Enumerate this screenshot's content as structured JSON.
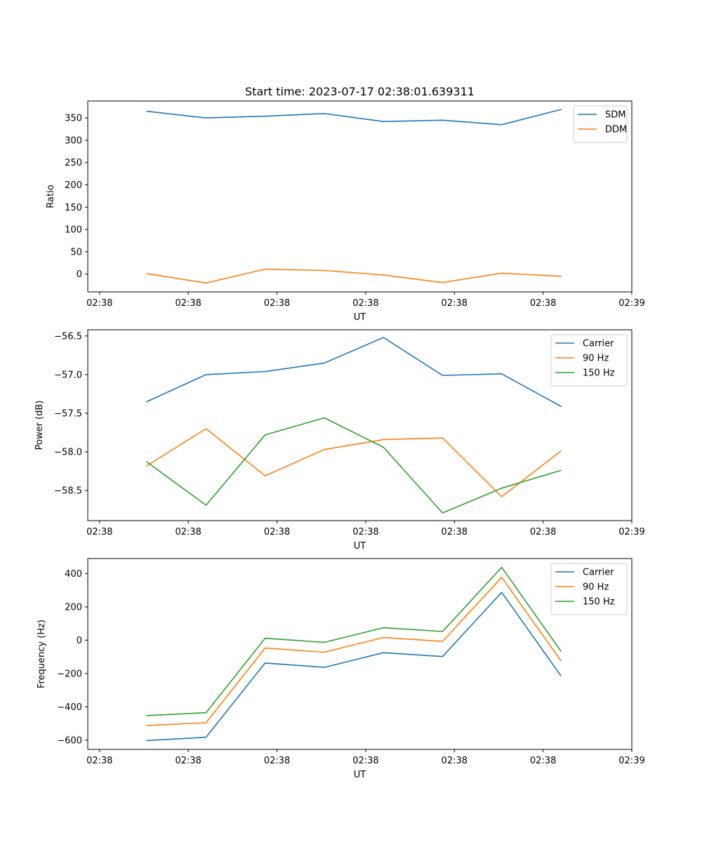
{
  "figure_title": "Start time: 2023-07-17 02:38:01.639311",
  "colors": {
    "blue": "#1f77b4",
    "orange": "#ff7f0e",
    "green": "#2ca02c",
    "axis": "#000000",
    "legend_border": "#cccccc"
  },
  "chart_data": [
    {
      "type": "line",
      "title": "Start time: 2023-07-17 02:38:01.639311",
      "xlabel": "UT",
      "ylabel": "Ratio",
      "x": [
        1,
        2,
        3,
        4,
        5,
        6,
        7,
        8
      ],
      "xlim": [
        0.0,
        9.2
      ],
      "xticks": [
        0.2,
        1.7,
        3.2,
        4.7,
        6.2,
        7.7,
        9.2
      ],
      "xticklabels": [
        "02:38",
        "02:38",
        "02:38",
        "02:38",
        "02:38",
        "02:38",
        "02:39"
      ],
      "ylim": [
        -40,
        388
      ],
      "yticks": [
        0,
        50,
        100,
        150,
        200,
        250,
        300,
        350
      ],
      "yticklabels": [
        "0",
        "50",
        "100",
        "150",
        "200",
        "250",
        "300",
        "350"
      ],
      "legend_position": "top-right",
      "series": [
        {
          "name": "SDM",
          "color": "#1f77b4",
          "values": [
            365,
            350,
            354,
            360,
            342,
            345,
            335,
            369
          ]
        },
        {
          "name": "DDM",
          "color": "#ff7f0e",
          "values": [
            1,
            -20,
            11,
            8,
            -2,
            -19,
            2,
            -5
          ]
        }
      ]
    },
    {
      "type": "line",
      "title": "",
      "xlabel": "UT",
      "ylabel": "Power (dB)",
      "x": [
        1,
        2,
        3,
        4,
        5,
        6,
        7,
        8
      ],
      "xlim": [
        0.0,
        9.2
      ],
      "xticks": [
        0.2,
        1.7,
        3.2,
        4.7,
        6.2,
        7.7,
        9.2
      ],
      "xticklabels": [
        "02:38",
        "02:38",
        "02:38",
        "02:38",
        "02:38",
        "02:38",
        "02:39"
      ],
      "ylim": [
        -58.89,
        -56.42
      ],
      "yticks": [
        -58.5,
        -58.0,
        -57.5,
        -57.0,
        -56.5
      ],
      "yticklabels": [
        "−58.5",
        "−58.0",
        "−57.5",
        "−57.0",
        "−56.5"
      ],
      "legend_position": "top-right",
      "series": [
        {
          "name": "Carrier",
          "color": "#1f77b4",
          "values": [
            -57.35,
            -57.0,
            -56.96,
            -56.85,
            -56.52,
            -57.01,
            -56.99,
            -57.41
          ]
        },
        {
          "name": "90 Hz",
          "color": "#ff7f0e",
          "values": [
            -58.18,
            -57.7,
            -58.31,
            -57.97,
            -57.84,
            -57.82,
            -58.58,
            -57.99
          ]
        },
        {
          "name": "150 Hz",
          "color": "#2ca02c",
          "values": [
            -58.13,
            -58.69,
            -57.78,
            -57.56,
            -57.94,
            -58.79,
            -58.47,
            -58.24
          ]
        }
      ]
    },
    {
      "type": "line",
      "title": "",
      "xlabel": "UT",
      "ylabel": "Frequency (Hz)",
      "x": [
        1,
        2,
        3,
        4,
        5,
        6,
        7,
        8
      ],
      "xlim": [
        0.0,
        9.2
      ],
      "xticks": [
        0.2,
        1.7,
        3.2,
        4.7,
        6.2,
        7.7,
        9.2
      ],
      "xticklabels": [
        "02:38",
        "02:38",
        "02:38",
        "02:38",
        "02:38",
        "02:38",
        "02:39"
      ],
      "ylim": [
        -655,
        490
      ],
      "yticks": [
        -600,
        -400,
        -200,
        0,
        200,
        400
      ],
      "yticklabels": [
        "−600",
        "−400",
        "−200",
        "0",
        "200",
        "400"
      ],
      "legend_position": "top-right",
      "series": [
        {
          "name": "Carrier",
          "color": "#1f77b4",
          "values": [
            -602,
            -582,
            -137,
            -163,
            -75,
            -98,
            287,
            -213
          ]
        },
        {
          "name": "90 Hz",
          "color": "#ff7f0e",
          "values": [
            -512,
            -495,
            -47,
            -72,
            16,
            -7,
            377,
            -123
          ]
        },
        {
          "name": "150 Hz",
          "color": "#2ca02c",
          "values": [
            -452,
            -435,
            12,
            -13,
            75,
            52,
            437,
            -65
          ]
        }
      ]
    }
  ]
}
